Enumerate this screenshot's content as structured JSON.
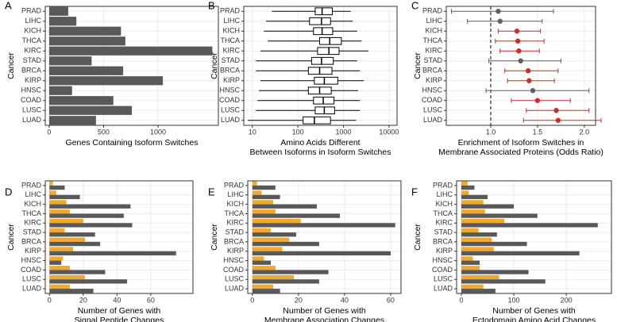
{
  "chart_data": [
    {
      "type": "bar",
      "label": "A",
      "ylabel": "Cancer",
      "xlabel": [
        "Genes Containing Isoform Switches"
      ],
      "categories": [
        "PRAD",
        "LIHC",
        "KICH",
        "THCA",
        "KIRC",
        "STAD",
        "BRCA",
        "KIRP",
        "HNSC",
        "COAD",
        "LUSC",
        "LUAD"
      ],
      "series": [
        {
          "color": "#595959",
          "values": [
            175,
            250,
            660,
            700,
            1500,
            390,
            680,
            1045,
            210,
            590,
            760,
            430
          ]
        }
      ],
      "xlim": [
        -36,
        1555
      ],
      "xticks": [
        0,
        500,
        1000
      ],
      "grid": true
    },
    {
      "type": "box",
      "label": "B",
      "ylabel": "Cancer",
      "xlabel": [
        "Amino Acids Different",
        "Between Isoforms in Isoform Switches"
      ],
      "categories": [
        "PRAD",
        "LIHC",
        "KICH",
        "THCA",
        "KIRC",
        "STAD",
        "BRCA",
        "KIRP",
        "HNSC",
        "COAD",
        "LUSC",
        "LUAD"
      ],
      "whisker_low": [
        27,
        20,
        18,
        22,
        15,
        12,
        12,
        15,
        14,
        13,
        12,
        8
      ],
      "q1": [
        240,
        180,
        220,
        300,
        270,
        200,
        170,
        230,
        170,
        220,
        240,
        130
      ],
      "median": [
        340,
        330,
        340,
        500,
        480,
        330,
        300,
        380,
        300,
        360,
        380,
        230
      ],
      "q3": [
        570,
        520,
        580,
        900,
        800,
        600,
        560,
        750,
        540,
        620,
        640,
        520
      ],
      "whisker_high": [
        1450,
        1600,
        2000,
        2500,
        3500,
        2000,
        2300,
        2800,
        2100,
        2300,
        2300,
        1900
      ],
      "log_x": true,
      "xlim": [
        6.5,
        15000
      ],
      "xticks": [
        10,
        100,
        1000,
        10000
      ],
      "grid": true
    },
    {
      "type": "errorbar",
      "label": "C",
      "ylabel": "Cancer",
      "xlabel": [
        "Enrichment of Isoform Switches in",
        "Membrane Associated Proteins (Odds Ratio)"
      ],
      "categories": [
        "PRAD",
        "LIHC",
        "KICH",
        "THCA",
        "KIRC",
        "STAD",
        "BRCA",
        "KIRP",
        "HNSC",
        "COAD",
        "LUSC",
        "LUAD"
      ],
      "values": [
        1.08,
        1.1,
        1.28,
        1.29,
        1.3,
        1.32,
        1.4,
        1.41,
        1.45,
        1.5,
        1.7,
        1.72
      ],
      "lower": [
        0.58,
        0.75,
        1.08,
        1.05,
        1.1,
        0.98,
        1.15,
        1.18,
        0.95,
        1.22,
        1.38,
        1.35
      ],
      "upper": [
        1.67,
        1.55,
        1.53,
        1.57,
        1.52,
        1.75,
        1.72,
        1.68,
        2.05,
        1.85,
        2.05,
        2.18
      ],
      "point_colors": [
        "#606060",
        "#606060",
        "#d22b2b",
        "#d22b2b",
        "#d22b2b",
        "#606060",
        "#d22b2b",
        "#d22b2b",
        "#606060",
        "#d22b2b",
        "#d22b2b",
        "#d22b2b"
      ],
      "reference_line": 1,
      "xlim": [
        0.525,
        2.12
      ],
      "xticks": [
        {
          "value": 1,
          "label": "1.0"
        },
        1.5,
        {
          "value": 2,
          "label": "2.0"
        }
      ],
      "grid": true
    },
    {
      "type": "bar",
      "label": "D",
      "ylabel": "Cancer",
      "xlabel": [
        "Number of Genes with",
        "Signal Peptide Changes"
      ],
      "categories": [
        "PRAD",
        "LIHC",
        "KICH",
        "THCA",
        "KIRC",
        "STAD",
        "BRCA",
        "KIRP",
        "HNSC",
        "COAD",
        "LUSC",
        "LUAD"
      ],
      "series": [
        {
          "color": "#f0a830",
          "values": [
            2,
            4,
            10,
            12,
            20,
            9,
            21,
            14,
            8,
            12,
            21,
            12
          ]
        },
        {
          "color": "#595959",
          "values": [
            9,
            18,
            48,
            44,
            49,
            27,
            30,
            75,
            7,
            33,
            46,
            26
          ]
        }
      ],
      "xlim": [
        -2.5,
        85
      ],
      "xticks": [
        0,
        20,
        40,
        60
      ],
      "grid": true
    },
    {
      "type": "bar",
      "label": "E",
      "ylabel": "Cancer",
      "xlabel": [
        "Number of Genes with",
        "Membrane Association Changes"
      ],
      "categories": [
        "PRAD",
        "LIHC",
        "KICH",
        "THCA",
        "KIRC",
        "STAD",
        "BRCA",
        "KIRP",
        "HNSC",
        "COAD",
        "LUSC",
        "LUAD"
      ],
      "series": [
        {
          "color": "#f0a830",
          "values": [
            2,
            4,
            9,
            10,
            21,
            8,
            16,
            13,
            5,
            10,
            18,
            9
          ]
        },
        {
          "color": "#595959",
          "values": [
            10,
            12,
            28,
            38,
            62,
            19,
            29,
            60,
            8,
            33,
            29,
            12
          ]
        }
      ],
      "xlim": [
        -2,
        64.5
      ],
      "xticks": [
        0,
        20,
        40,
        60
      ],
      "grid": true
    },
    {
      "type": "bar",
      "label": "F",
      "ylabel": "Cancer",
      "xlabel": [
        "Number of Genes with",
        "Ectodomain Amino Acid Changes"
      ],
      "categories": [
        "PRAD",
        "LIHC",
        "KICH",
        "THCA",
        "KIRC",
        "STAD",
        "BRCA",
        "KIRP",
        "HNSC",
        "COAD",
        "LUSC",
        "LUAD"
      ],
      "series": [
        {
          "color": "#f0a830",
          "values": [
            12,
            14,
            42,
            45,
            82,
            33,
            58,
            62,
            22,
            35,
            72,
            42
          ]
        },
        {
          "color": "#595959",
          "values": [
            25,
            50,
            100,
            145,
            260,
            68,
            125,
            225,
            35,
            128,
            160,
            65
          ]
        }
      ],
      "xlim": [
        -9,
        286
      ],
      "xticks": [
        0,
        100,
        200
      ],
      "grid": true
    }
  ]
}
